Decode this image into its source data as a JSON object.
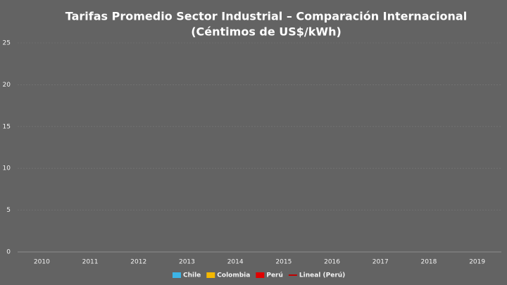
{
  "chart_data": {
    "type": "bar",
    "title": [
      "Tarifas Promedio Sector Industrial – Comparación Internacional",
      "(Céntimos de US$/kWh)"
    ],
    "categories": [
      "2010",
      "2011",
      "2012",
      "2013",
      "2014",
      "2015",
      "2016",
      "2017",
      "2018",
      "2019"
    ],
    "series": [
      {
        "name": "Chile",
        "color": "#3cb4e6",
        "values": [
          null,
          null,
          null,
          null,
          null,
          null,
          null,
          null,
          null,
          null
        ]
      },
      {
        "name": "Colombia",
        "color": "#f5b800",
        "values": [
          null,
          null,
          null,
          null,
          null,
          null,
          null,
          null,
          null,
          null
        ]
      },
      {
        "name": "Perú",
        "color": "#e00000",
        "values": [
          null,
          null,
          null,
          null,
          null,
          null,
          null,
          null,
          null,
          null
        ]
      },
      {
        "name": "Lineal (Perú)",
        "color": "#c00000",
        "type": "line",
        "values": [
          null,
          null,
          null,
          null,
          null,
          null,
          null,
          null,
          null,
          null
        ]
      }
    ],
    "ylim": [
      0,
      25
    ],
    "yticks": [
      0,
      5,
      10,
      15,
      20,
      25
    ],
    "grid": true,
    "legend": "bottom"
  }
}
